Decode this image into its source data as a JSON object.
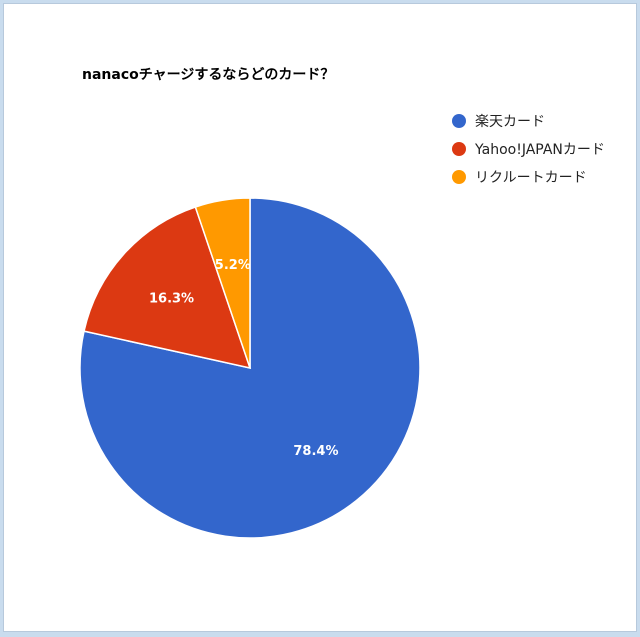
{
  "chart_data": {
    "type": "pie",
    "title": "nanacoチャージするならどのカード？",
    "categories": [
      "楽天カード",
      "Yahoo!JAPANカード",
      "リクルートカード"
    ],
    "values": [
      78.4,
      16.3,
      5.2
    ],
    "labels": [
      "78.4%",
      "16.3%",
      "5.2%"
    ],
    "colors": [
      "#3366cc",
      "#dc3912",
      "#ff9900"
    ],
    "legend_position": "top-right"
  }
}
